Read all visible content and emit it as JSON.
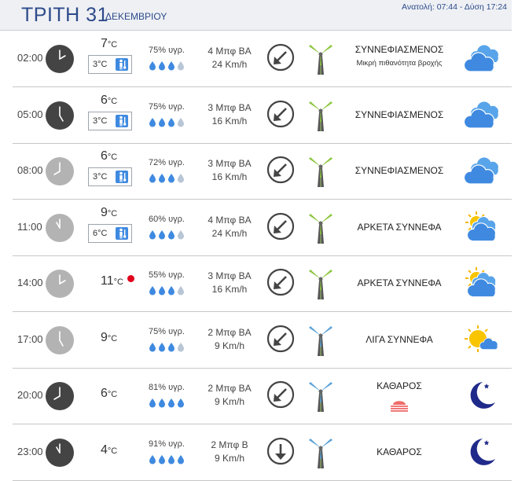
{
  "header": {
    "day_title": "ΤΡΙΤΗ 31",
    "month": "ΔΕΚΕΜΒΡΙΟΥ",
    "sun_times": "Ανατολή: 07:44 - Δύση 17:24"
  },
  "units": {
    "temp": "°C",
    "humidity_suffix": "υγρ."
  },
  "colors": {
    "accent": "#2d4a8a",
    "clock_night": "#444444",
    "clock_day": "#b3b3b3",
    "drop": "#3f8ae0",
    "hot_marker": "#e0001a",
    "turbine_green": "#8cc63e",
    "turbine_blue": "#5aa2d8"
  },
  "rows": [
    {
      "time": "02:00",
      "clock": "night",
      "temp": "7",
      "feels": "3°C",
      "humidity": "75% υγρ.",
      "drops": 3,
      "beaufort": "4 Μπφ ΒΑ",
      "speed": "24 Km/h",
      "direction": "ne",
      "turbine": "green",
      "condition": "ΣΥΝΝΕΦΙΑΣΜΕΝΟΣ",
      "condition_sub": "Μικρή πιθανότητα βροχής",
      "icon": "cloudy-icon"
    },
    {
      "time": "05:00",
      "clock": "night",
      "temp": "6",
      "feels": "3°C",
      "humidity": "75% υγρ.",
      "drops": 3,
      "beaufort": "3 Μπφ ΒΑ",
      "speed": "16 Km/h",
      "direction": "ne",
      "turbine": "green",
      "condition": "ΣΥΝΝΕΦΙΑΣΜΕΝΟΣ",
      "condition_sub": "",
      "icon": "cloudy-icon"
    },
    {
      "time": "08:00",
      "clock": "day",
      "temp": "6",
      "feels": "3°C",
      "humidity": "72% υγρ.",
      "drops": 3,
      "beaufort": "3 Μπφ ΒΑ",
      "speed": "16 Km/h",
      "direction": "ne",
      "turbine": "green",
      "condition": "ΣΥΝΝΕΦΙΑΣΜΕΝΟΣ",
      "condition_sub": "",
      "icon": "cloudy-icon"
    },
    {
      "time": "11:00",
      "clock": "day",
      "temp": "9",
      "feels": "6°C",
      "humidity": "60% υγρ.",
      "drops": 3,
      "beaufort": "4 Μπφ ΒΑ",
      "speed": "24 Km/h",
      "direction": "ne",
      "turbine": "green",
      "condition": "ΑΡΚΕΤΑ ΣΥΝΝΕΦΑ",
      "condition_sub": "",
      "icon": "partly-cloudy-icon"
    },
    {
      "time": "14:00",
      "clock": "day",
      "temp": "11",
      "feels": "",
      "humidity": "55% υγρ.",
      "drops": 3,
      "beaufort": "3 Μπφ ΒΑ",
      "speed": "16 Km/h",
      "direction": "ne",
      "turbine": "green",
      "condition": "ΑΡΚΕΤΑ ΣΥΝΝΕΦΑ",
      "condition_sub": "",
      "icon": "partly-cloudy-icon",
      "hot": true
    },
    {
      "time": "17:00",
      "clock": "day",
      "temp": "9",
      "feels": "",
      "humidity": "75% υγρ.",
      "drops": 3,
      "beaufort": "2 Μπφ ΒΑ",
      "speed": "9 Km/h",
      "direction": "ne",
      "turbine": "blue",
      "condition": "ΛΙΓΑ ΣΥΝΝΕΦΑ",
      "condition_sub": "",
      "icon": "few-clouds-icon"
    },
    {
      "time": "20:00",
      "clock": "night",
      "temp": "6",
      "feels": "",
      "humidity": "81% υγρ.",
      "drops": 4,
      "beaufort": "2 Μπφ ΒΑ",
      "speed": "9 Km/h",
      "direction": "ne",
      "turbine": "blue",
      "condition": "ΚΑΘΑΡΟΣ",
      "condition_sub": "",
      "icon": "moon-icon",
      "mist": true
    },
    {
      "time": "23:00",
      "clock": "night",
      "temp": "4",
      "feels": "",
      "humidity": "91% υγρ.",
      "drops": 4,
      "beaufort": "2 Μπφ Β",
      "speed": "9 Km/h",
      "direction": "n",
      "turbine": "blue",
      "condition": "ΚΑΘΑΡΟΣ",
      "condition_sub": "",
      "icon": "moon-icon"
    }
  ]
}
